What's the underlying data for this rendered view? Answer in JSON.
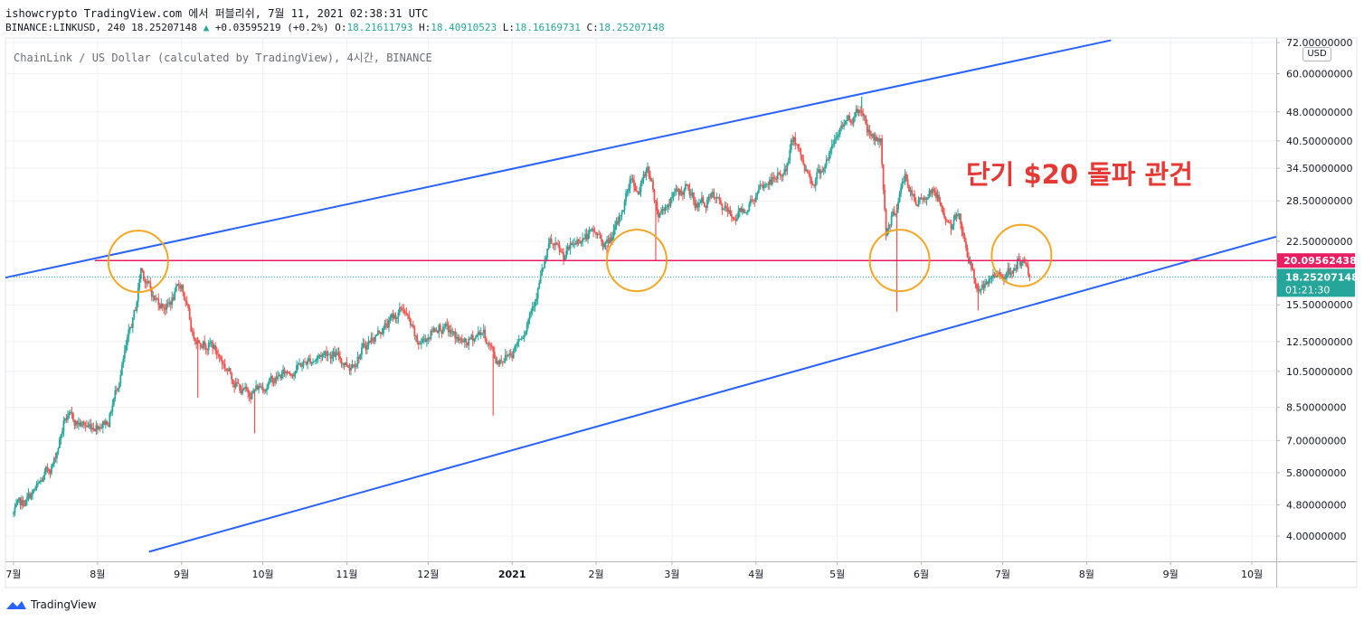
{
  "header": {
    "title_line": "ishowcrypto TradingView.com 에서 퍼블리쉬, 7월 11, 2021 02:38:31 UTC",
    "symbol": "BINANCE:LINKUSD, 240",
    "last": "18.25207148",
    "change": "+0.03595219 (+0.2%)",
    "o_label": "O:",
    "o_value": "18.21611793",
    "h_label": "H:",
    "h_value": "18.40910523",
    "l_label": "L:",
    "l_value": "18.16169731",
    "c_label": "C:",
    "c_value": "18.25207148"
  },
  "watermark": "ChainLink / US Dollar (calculated by TradingView), 4시간, BINANCE",
  "currency_badge": "USD",
  "annotation_text": "단기 $20 돌파 관건",
  "footer": {
    "brand": "TradingView"
  },
  "colors": {
    "channel": "#2962ff",
    "horizontal_level": "#e91e63",
    "circles": "#f5a623",
    "up": "#26a69a",
    "down": "#ef5350",
    "price_label_bg": "#26a69a",
    "level_label_bg": "#e91e63",
    "annotation": "#e53935"
  },
  "chart_data": {
    "type": "candlestick",
    "scale": "log",
    "y_ticks": [
      "72.00000000",
      "60.00000000",
      "48.00000000",
      "40.50000000",
      "34.50000000",
      "28.50000000",
      "22.50000000",
      "15.50000000",
      "12.50000000",
      "10.50000000",
      "8.50000000",
      "7.00000000",
      "5.80000000",
      "4.80000000",
      "4.00000000"
    ],
    "y_tick_values": [
      72,
      60,
      48,
      40.5,
      34.5,
      28.5,
      22.5,
      15.5,
      12.5,
      10.5,
      8.5,
      7.0,
      5.8,
      4.8,
      4.0
    ],
    "x_ticks": [
      "7월",
      "8월",
      "9월",
      "10월",
      "11월",
      "12월",
      "2021",
      "2월",
      "3월",
      "4월",
      "5월",
      "6월",
      "7월",
      "8월",
      "9월",
      "10월"
    ],
    "x_tick_dates": [
      "2020-07-01",
      "2020-08-01",
      "2020-09-01",
      "2020-10-01",
      "2020-11-01",
      "2020-12-01",
      "2021-01-01",
      "2021-02-01",
      "2021-03-01",
      "2021-04-01",
      "2021-05-01",
      "2021-06-01",
      "2021-07-01",
      "2021-08-01",
      "2021-09-01",
      "2021-10-01"
    ],
    "price_path": [
      {
        "date": "2020-07-01",
        "price": 4.55
      },
      {
        "date": "2020-07-10",
        "price": 5.3
      },
      {
        "date": "2020-07-16",
        "price": 6.2
      },
      {
        "date": "2020-07-20",
        "price": 8.0
      },
      {
        "date": "2020-07-28",
        "price": 7.6
      },
      {
        "date": "2020-08-05",
        "price": 7.9
      },
      {
        "date": "2020-08-10",
        "price": 10.8
      },
      {
        "date": "2020-08-15",
        "price": 15.0
      },
      {
        "date": "2020-08-17",
        "price": 19.2
      },
      {
        "date": "2020-08-22",
        "price": 16.0
      },
      {
        "date": "2020-08-27",
        "price": 15.4
      },
      {
        "date": "2020-09-01",
        "price": 17.5
      },
      {
        "date": "2020-09-05",
        "price": 13.0
      },
      {
        "date": "2020-09-12",
        "price": 12.3
      },
      {
        "date": "2020-09-22",
        "price": 9.6
      },
      {
        "date": "2020-09-25",
        "price": 9.2
      },
      {
        "date": "2020-10-05",
        "price": 10.0
      },
      {
        "date": "2020-10-15",
        "price": 10.9
      },
      {
        "date": "2020-10-25",
        "price": 11.8
      },
      {
        "date": "2020-11-02",
        "price": 10.9
      },
      {
        "date": "2020-11-10",
        "price": 12.7
      },
      {
        "date": "2020-11-22",
        "price": 15.2
      },
      {
        "date": "2020-11-27",
        "price": 12.2
      },
      {
        "date": "2020-12-05",
        "price": 13.8
      },
      {
        "date": "2020-12-15",
        "price": 12.2
      },
      {
        "date": "2020-12-21",
        "price": 13.4
      },
      {
        "date": "2020-12-26",
        "price": 11.2
      },
      {
        "date": "2021-01-01",
        "price": 11.8
      },
      {
        "date": "2021-01-06",
        "price": 13.8
      },
      {
        "date": "2021-01-10",
        "price": 16.8
      },
      {
        "date": "2021-01-15",
        "price": 22.0
      },
      {
        "date": "2021-01-20",
        "price": 20.5
      },
      {
        "date": "2021-01-26",
        "price": 23.0
      },
      {
        "date": "2021-02-01",
        "price": 23.4
      },
      {
        "date": "2021-02-05",
        "price": 22.0
      },
      {
        "date": "2021-02-09",
        "price": 24.5
      },
      {
        "date": "2021-02-14",
        "price": 33.0
      },
      {
        "date": "2021-02-17",
        "price": 30.0
      },
      {
        "date": "2021-02-20",
        "price": 35.0
      },
      {
        "date": "2021-02-24",
        "price": 26.5
      },
      {
        "date": "2021-03-01",
        "price": 29.0
      },
      {
        "date": "2021-03-06",
        "price": 30.5
      },
      {
        "date": "2021-03-10",
        "price": 28.0
      },
      {
        "date": "2021-03-16",
        "price": 28.8
      },
      {
        "date": "2021-03-23",
        "price": 25.8
      },
      {
        "date": "2021-03-28",
        "price": 27.5
      },
      {
        "date": "2021-04-05",
        "price": 31.5
      },
      {
        "date": "2021-04-12",
        "price": 34.0
      },
      {
        "date": "2021-04-15",
        "price": 42.0
      },
      {
        "date": "2021-04-18",
        "price": 36.0
      },
      {
        "date": "2021-04-22",
        "price": 32.0
      },
      {
        "date": "2021-04-28",
        "price": 37.0
      },
      {
        "date": "2021-05-03",
        "price": 45.0
      },
      {
        "date": "2021-05-10",
        "price": 49.0
      },
      {
        "date": "2021-05-13",
        "price": 42.0
      },
      {
        "date": "2021-05-17",
        "price": 40.5
      },
      {
        "date": "2021-05-19",
        "price": 24.0
      },
      {
        "date": "2021-05-22",
        "price": 26.5
      },
      {
        "date": "2021-05-26",
        "price": 33.0
      },
      {
        "date": "2021-05-30",
        "price": 27.5
      },
      {
        "date": "2021-06-05",
        "price": 31.0
      },
      {
        "date": "2021-06-12",
        "price": 24.5
      },
      {
        "date": "2021-06-15",
        "price": 26.0
      },
      {
        "date": "2021-06-21",
        "price": 17.5
      },
      {
        "date": "2021-06-25",
        "price": 17.0
      },
      {
        "date": "2021-07-01",
        "price": 19.0
      },
      {
        "date": "2021-07-05",
        "price": 18.2
      },
      {
        "date": "2021-07-07",
        "price": 20.4
      },
      {
        "date": "2021-07-11",
        "price": 18.25
      }
    ],
    "wicks": [
      {
        "date": "2020-09-07",
        "low": 9.0
      },
      {
        "date": "2020-09-28",
        "low": 7.3
      },
      {
        "date": "2020-12-25",
        "low": 8.1
      },
      {
        "date": "2021-02-05",
        "low": 20.1
      },
      {
        "date": "2021-02-23",
        "low": 20.1
      },
      {
        "date": "2021-05-23",
        "low": 14.9
      },
      {
        "date": "2021-06-22",
        "low": 15.0
      },
      {
        "date": "2021-05-10",
        "high": 52.5
      }
    ],
    "channel_upper": [
      {
        "date": "2020-06-30",
        "price": 18.3
      },
      {
        "date": "2021-08-10",
        "price": 73.0
      }
    ],
    "channel_lower": [
      {
        "date": "2020-08-20",
        "price": 3.65
      },
      {
        "date": "2021-10-06",
        "price": 22.7
      }
    ],
    "horizontal_level": {
      "price": 20.09562438,
      "from_date": "2020-07-31",
      "label": "20.09562438"
    },
    "current_price": {
      "price": 18.25207148,
      "label": "18.25207148",
      "countdown": "01:21:30"
    },
    "highlight_circles": [
      {
        "date": "2020-08-16",
        "price": 20.0
      },
      {
        "date": "2021-02-16",
        "price": 20.1
      },
      {
        "date": "2021-05-24",
        "price": 20.1
      },
      {
        "date": "2021-07-08",
        "price": 20.7
      }
    ],
    "legend": "none",
    "grid": true
  }
}
